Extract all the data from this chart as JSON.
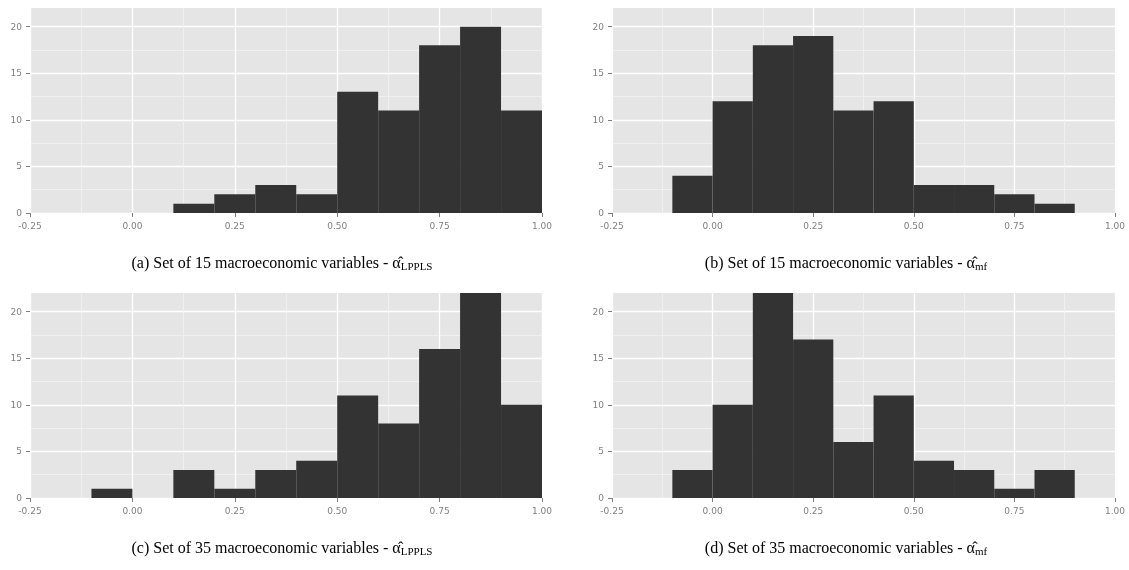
{
  "chart_data": [
    {
      "type": "histogram",
      "title": "(a) Set of 15 macroeconomic variables - α̂$_{LPPLS}$",
      "bins": [
        0.1,
        0.2,
        0.3,
        0.4,
        0.5,
        0.6,
        0.7,
        0.8,
        0.9,
        1.0
      ],
      "values": [
        1,
        2,
        3,
        2,
        13,
        11,
        18,
        20,
        11
      ],
      "color": "#333333",
      "xlim": [
        -0.25,
        1.0
      ],
      "xticks": [
        -0.25,
        {
          "value": 0,
          "label": "0.00"
        },
        0.25,
        {
          "value": 0.5,
          "label": "0.50"
        },
        0.75,
        {
          "value": 1,
          "label": "1.00"
        }
      ],
      "ylim": [
        0,
        22
      ],
      "yticks": [
        0,
        5,
        10,
        15,
        20
      ],
      "grid": true
    },
    {
      "type": "histogram",
      "title": "(b) Set of 15 macroeconomic variables - α̂$_{mf}$",
      "bins": [
        -0.1,
        0.0,
        0.1,
        0.2,
        0.3,
        0.4,
        0.5,
        0.6,
        0.7,
        0.8,
        0.9
      ],
      "values": [
        4,
        12,
        18,
        19,
        11,
        12,
        3,
        3,
        2,
        1
      ],
      "color": "#333333",
      "xlim": [
        -0.25,
        1.0
      ],
      "xticks": [
        -0.25,
        {
          "value": 0,
          "label": "0.00"
        },
        0.25,
        {
          "value": 0.5,
          "label": "0.50"
        },
        0.75,
        {
          "value": 1,
          "label": "1.00"
        }
      ],
      "ylim": [
        0,
        22
      ],
      "yticks": [
        0,
        5,
        10,
        15,
        20
      ],
      "grid": true
    },
    {
      "type": "histogram",
      "title": "(c) Set of 35 macroeconomic variables - α̂$_{LPPLS}$",
      "bins": [
        -0.1,
        0.0,
        0.1,
        0.2,
        0.3,
        0.4,
        0.5,
        0.6,
        0.7,
        0.8,
        0.9,
        1.0
      ],
      "values": [
        1,
        0,
        3,
        1,
        3,
        4,
        11,
        8,
        16,
        22,
        10
      ],
      "color": "#333333",
      "xlim": [
        -0.25,
        1.0
      ],
      "xticks": [
        -0.25,
        {
          "value": 0,
          "label": "0.00"
        },
        0.25,
        {
          "value": 0.5,
          "label": "0.50"
        },
        0.75,
        {
          "value": 1,
          "label": "1.00"
        }
      ],
      "ylim": [
        0,
        22
      ],
      "yticks": [
        0,
        5,
        10,
        15,
        20
      ],
      "grid": true
    },
    {
      "type": "histogram",
      "title": "(d) Set of 35 macroeconomic variables - α̂$_{mf}$",
      "bins": [
        -0.1,
        0.0,
        0.1,
        0.2,
        0.3,
        0.4,
        0.5,
        0.6,
        0.7,
        0.8,
        0.9
      ],
      "values": [
        3,
        10,
        22,
        17,
        6,
        11,
        4,
        3,
        1,
        3
      ],
      "color": "#333333",
      "xlim": [
        -0.25,
        1.0
      ],
      "xticks": [
        -0.25,
        {
          "value": 0,
          "label": "0.00"
        },
        0.25,
        {
          "value": 0.5,
          "label": "0.50"
        },
        0.75,
        {
          "value": 1,
          "label": "1.00"
        }
      ],
      "ylim": [
        0,
        22
      ],
      "yticks": [
        0,
        5,
        10,
        15,
        20
      ],
      "grid": true
    }
  ]
}
